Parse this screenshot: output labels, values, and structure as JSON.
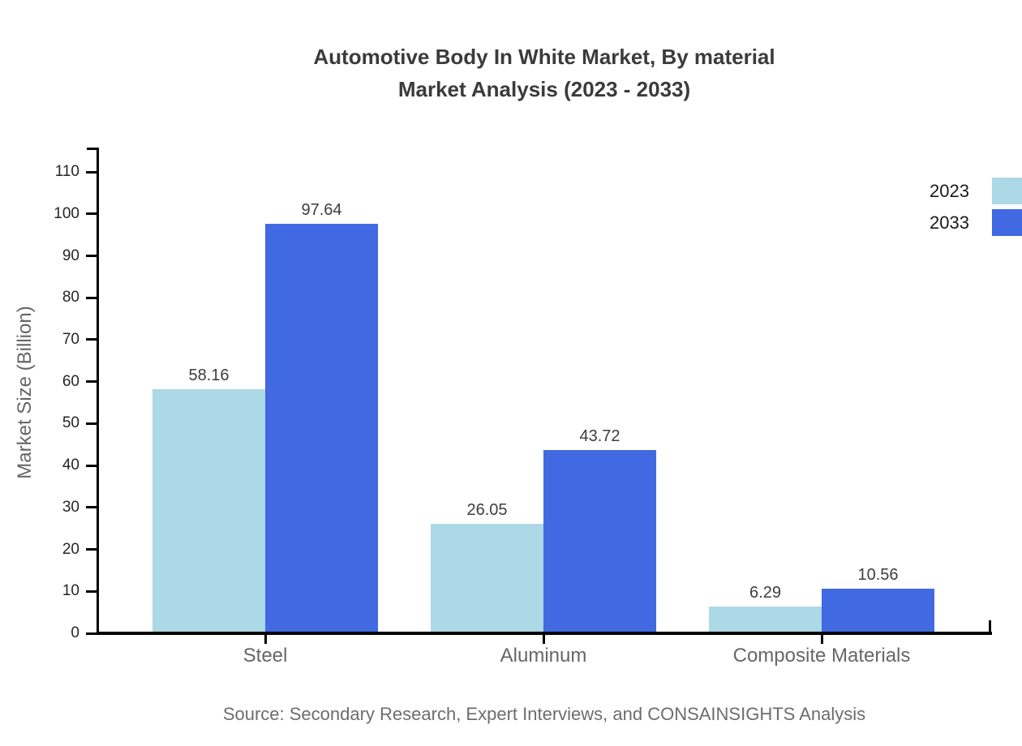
{
  "title": {
    "line1": "Automotive Body In White Market, By material",
    "line2": "Market Analysis (2023 - 2033)"
  },
  "source": "Source: Secondary Research, Expert Interviews, and CONSAINSIGHTS Analysis",
  "chart_data": {
    "type": "bar",
    "title": "Automotive Body In White Market, By material Market Analysis (2023 - 2033)",
    "categories": [
      "Steel",
      "Aluminum",
      "Composite Materials"
    ],
    "series": [
      {
        "name": "2023",
        "color": "#ADD8E6",
        "values": [
          58.16,
          26.05,
          6.29
        ]
      },
      {
        "name": "2033",
        "color": "#4169E1",
        "values": [
          97.64,
          43.72,
          10.56
        ]
      }
    ],
    "xlabel": "",
    "ylabel": "Market Size (Billion)",
    "ylim": [
      0,
      115.8
    ],
    "yticks": [
      0,
      10,
      20,
      30,
      40,
      50,
      60,
      70,
      80,
      90,
      100,
      110
    ],
    "grid": false,
    "legend_position": "top-right",
    "value_labels": true
  },
  "colors": {
    "axis": "#000000",
    "title_text": "#3b3b3b",
    "tick_text": "#262626",
    "category_text": "#666666",
    "source_text": "#6d6d6d",
    "series_2023": "#ADD8E6",
    "series_2033": "#4169E1"
  }
}
